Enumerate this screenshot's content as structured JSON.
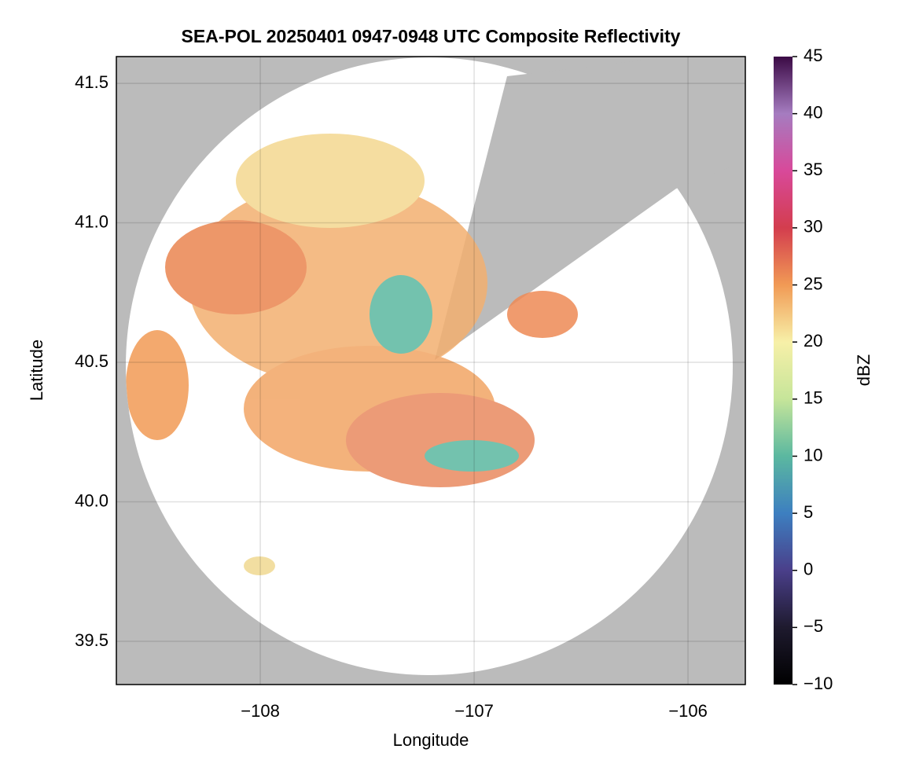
{
  "chart_data": {
    "type": "map",
    "title": "SEA-POL 20250401 0947-0948 UTC Composite Reflectivity",
    "x_label": "Longitude",
    "y_label": "Latitude",
    "xlim": [
      -108.673,
      -105.732
    ],
    "ylim": [
      39.345,
      41.596
    ],
    "xticks": [
      {
        "value": -108,
        "label": "−108"
      },
      {
        "value": -107,
        "label": "−107"
      },
      {
        "value": -106,
        "label": "−106"
      }
    ],
    "yticks": [
      39.5,
      {
        "value": 40,
        "label": "40.0"
      },
      40.5,
      {
        "value": 41,
        "label": "41.0"
      },
      41.5
    ],
    "grid": true,
    "background_color": "#bbbbbb",
    "colorbar": {
      "label": "dBZ",
      "lim": [
        -10,
        45
      ],
      "ticks": [
        {
          "value": -10,
          "label": "−10"
        },
        {
          "value": -5,
          "label": "−5"
        },
        0,
        5,
        10,
        15,
        20,
        25,
        30,
        35,
        40,
        45
      ],
      "colors": [
        "#000000",
        "#1e1a2e",
        "#4a3f8a",
        "#3d7fc0",
        "#5bb8a0",
        "#c6e59a",
        "#f7f0a8",
        "#f19a55",
        "#d33d4e",
        "#d8499a",
        "#a57cc0",
        "#3b0a45"
      ]
    }
  }
}
